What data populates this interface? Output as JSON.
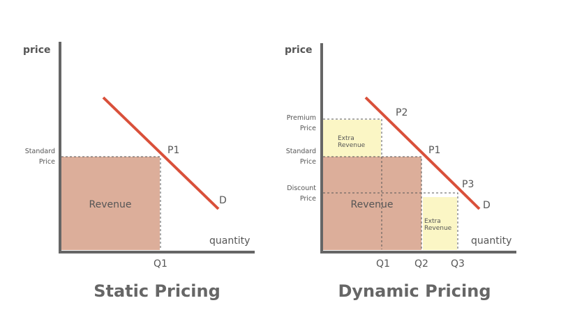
{
  "panels": [
    {
      "title": "Static Pricing",
      "y_axis_label": "price",
      "x_axis_label": "quantity",
      "price_levels": [
        {
          "lines": [
            "Standard",
            "Price"
          ]
        }
      ],
      "points": [
        "P1"
      ],
      "demand_label": "D",
      "revenue_label": "Revenue",
      "quantities": [
        "Q1"
      ]
    },
    {
      "title": "Dynamic Pricing",
      "y_axis_label": "price",
      "x_axis_label": "quantity",
      "price_levels": [
        {
          "lines": [
            "Premium",
            "Price"
          ]
        },
        {
          "lines": [
            "Standard",
            "Price"
          ]
        },
        {
          "lines": [
            "Discount",
            "Price"
          ]
        }
      ],
      "points": [
        "P2",
        "P1",
        "P3"
      ],
      "demand_label": "D",
      "revenue_label": "Revenue",
      "extra_revenue": [
        {
          "lines": [
            "Extra",
            "Revenue"
          ]
        },
        {
          "lines": [
            "Extra",
            "Revenue"
          ]
        }
      ],
      "quantities": [
        "Q1",
        "Q2",
        "Q3"
      ]
    }
  ]
}
